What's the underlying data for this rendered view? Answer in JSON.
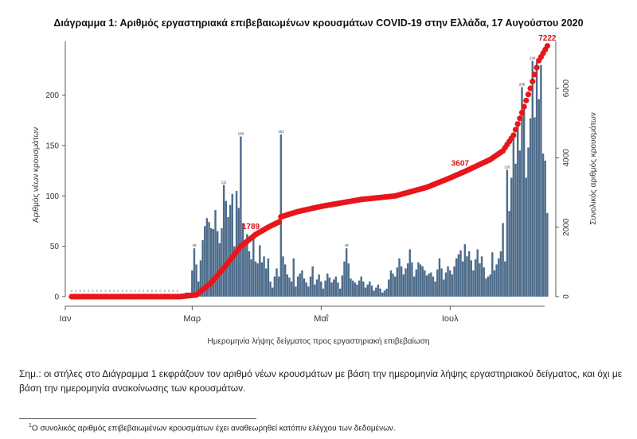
{
  "title": "Διάγραμμα 1: Αριθμός εργαστηριακά επιβεβαιωμένων κρουσμάτων COVID-19 στην Ελλάδα, 17 Αυγούστου 2020",
  "note": "Σημ.: οι στήλες στο Διάγραμμα 1 εκφράζουν τον αριθμό νέων κρουσμάτων με βάση την ημερομηνία λήψης εργαστηριακού δείγματος, και όχι με βάση την ημερομηνία ανακοίνωσης των κρουσμάτων.",
  "footnote": {
    "marker": "1",
    "text": "Ο συνολικός αριθμός επιβεβαιωμένων κρουσμάτων έχει αναθεωρηθεί κατόπιν ελέγχου των δεδομένων."
  },
  "colors": {
    "bars": "#4e6d8c",
    "cumulative": "#e8161b",
    "labels": "#d4141a"
  },
  "chart_data": {
    "type": "bar",
    "xlabel": "Ημερομηνία λήψης δείγματος προς εργαστηριακή επιβεβαίωση",
    "ylabel_left": "Αριθμός νέων κρουσμάτων",
    "ylabel_right": "Συνολικός αριθμός κρουσμάτων",
    "x_ticks": [
      "Ιαν",
      "Μαρ",
      "Μαΐ",
      "Ιουλ"
    ],
    "y_left_ticks": [
      0,
      50,
      100,
      150,
      200
    ],
    "y_right_ticks": [
      0,
      2000,
      4000,
      6000
    ],
    "ylim_left": [
      0,
      255
    ],
    "ylim_right": [
      0,
      7400
    ],
    "bars_start_date": "2020-01-04",
    "bars_end_date": "2020-08-16",
    "bar_keyframes": [
      [
        "2020-01-04",
        0
      ],
      [
        "2020-02-24",
        0
      ],
      [
        "2020-02-25",
        2
      ],
      [
        "2020-02-27",
        4
      ],
      [
        "2020-02-29",
        3
      ],
      [
        "2020-03-02",
        48
      ],
      [
        "2020-03-04",
        15
      ],
      [
        "2020-03-06",
        56
      ],
      [
        "2020-03-07",
        70
      ],
      [
        "2020-03-08",
        78
      ],
      [
        "2020-03-09",
        74
      ],
      [
        "2020-03-10",
        68
      ],
      [
        "2020-03-11",
        67
      ],
      [
        "2020-03-12",
        86
      ],
      [
        "2020-03-13",
        65
      ],
      [
        "2020-03-14",
        53
      ],
      [
        "2020-03-15",
        68
      ],
      [
        "2020-03-16",
        111
      ],
      [
        "2020-03-17",
        95
      ],
      [
        "2020-03-18",
        79
      ],
      [
        "2020-03-19",
        91
      ],
      [
        "2020-03-20",
        102
      ],
      [
        "2020-03-21",
        50
      ],
      [
        "2020-03-22",
        105
      ],
      [
        "2020-03-23",
        88
      ],
      [
        "2020-03-24",
        159
      ],
      [
        "2020-03-25",
        73
      ],
      [
        "2020-03-26",
        51
      ],
      [
        "2020-03-27",
        62
      ],
      [
        "2020-03-28",
        45
      ],
      [
        "2020-03-29",
        37
      ],
      [
        "2020-03-30",
        62
      ],
      [
        "2020-03-31",
        35
      ],
      [
        "2020-04-01",
        33
      ],
      [
        "2020-04-02",
        51
      ],
      [
        "2020-04-03",
        34
      ],
      [
        "2020-04-04",
        40
      ],
      [
        "2020-04-05",
        28
      ],
      [
        "2020-04-06",
        38
      ],
      [
        "2020-04-07",
        15
      ],
      [
        "2020-04-08",
        9
      ],
      [
        "2020-04-09",
        20
      ],
      [
        "2020-04-10",
        28
      ],
      [
        "2020-04-11",
        20
      ],
      [
        "2020-04-12",
        161
      ],
      [
        "2020-04-13",
        40
      ],
      [
        "2020-04-14",
        32
      ],
      [
        "2020-04-15",
        22
      ],
      [
        "2020-04-17",
        15
      ],
      [
        "2020-04-18",
        38
      ],
      [
        "2020-04-19",
        10
      ],
      [
        "2020-04-20",
        20
      ],
      [
        "2020-04-22",
        26
      ],
      [
        "2020-04-23",
        18
      ],
      [
        "2020-04-25",
        10
      ],
      [
        "2020-04-27",
        30
      ],
      [
        "2020-04-28",
        12
      ],
      [
        "2020-04-30",
        22
      ],
      [
        "2020-05-02",
        8
      ],
      [
        "2020-05-04",
        23
      ],
      [
        "2020-05-06",
        14
      ],
      [
        "2020-05-08",
        20
      ],
      [
        "2020-05-10",
        8
      ],
      [
        "2020-05-13",
        48
      ],
      [
        "2020-05-15",
        18
      ],
      [
        "2020-05-18",
        12
      ],
      [
        "2020-05-20",
        20
      ],
      [
        "2020-05-22",
        9
      ],
      [
        "2020-05-24",
        15
      ],
      [
        "2020-05-26",
        6
      ],
      [
        "2020-05-28",
        12
      ],
      [
        "2020-05-30",
        4
      ],
      [
        "2020-06-01",
        8
      ],
      [
        "2020-06-03",
        26
      ],
      [
        "2020-06-05",
        20
      ],
      [
        "2020-06-07",
        38
      ],
      [
        "2020-06-09",
        22
      ],
      [
        "2020-06-11",
        33
      ],
      [
        "2020-06-12",
        47
      ],
      [
        "2020-06-14",
        20
      ],
      [
        "2020-06-16",
        34
      ],
      [
        "2020-06-18",
        30
      ],
      [
        "2020-06-20",
        21
      ],
      [
        "2020-06-22",
        24
      ],
      [
        "2020-06-24",
        15
      ],
      [
        "2020-06-26",
        38
      ],
      [
        "2020-06-28",
        17
      ],
      [
        "2020-06-30",
        30
      ],
      [
        "2020-07-02",
        22
      ],
      [
        "2020-07-04",
        38
      ],
      [
        "2020-07-06",
        46
      ],
      [
        "2020-07-07",
        35
      ],
      [
        "2020-07-08",
        52
      ],
      [
        "2020-07-09",
        40
      ],
      [
        "2020-07-10",
        45
      ],
      [
        "2020-07-12",
        26
      ],
      [
        "2020-07-14",
        47
      ],
      [
        "2020-07-15",
        33
      ],
      [
        "2020-07-16",
        40
      ],
      [
        "2020-07-18",
        18
      ],
      [
        "2020-07-20",
        22
      ],
      [
        "2020-07-21",
        44
      ],
      [
        "2020-07-22",
        26
      ],
      [
        "2020-07-24",
        38
      ],
      [
        "2020-07-25",
        45
      ],
      [
        "2020-07-26",
        73
      ],
      [
        "2020-07-27",
        35
      ],
      [
        "2020-07-28",
        126
      ],
      [
        "2020-07-29",
        85
      ],
      [
        "2020-07-30",
        118
      ],
      [
        "2020-07-31",
        157
      ],
      [
        "2020-08-01",
        132
      ],
      [
        "2020-08-02",
        172
      ],
      [
        "2020-08-03",
        145
      ],
      [
        "2020-08-04",
        208
      ],
      [
        "2020-08-05",
        190
      ],
      [
        "2020-08-06",
        118
      ],
      [
        "2020-08-07",
        148
      ],
      [
        "2020-08-08",
        177
      ],
      [
        "2020-08-09",
        234
      ],
      [
        "2020-08-10",
        178
      ],
      [
        "2020-08-11",
        233
      ],
      [
        "2020-08-12",
        196
      ],
      [
        "2020-08-13",
        230
      ],
      [
        "2020-08-14",
        142
      ],
      [
        "2020-08-15",
        135
      ],
      [
        "2020-08-16",
        83
      ]
    ],
    "cumulative_keyframes": [
      [
        "2020-01-04",
        0
      ],
      [
        "2020-02-24",
        0
      ],
      [
        "2020-03-03",
        50
      ],
      [
        "2020-03-10",
        400
      ],
      [
        "2020-03-17",
        900
      ],
      [
        "2020-03-24",
        1450
      ],
      [
        "2020-03-31",
        1789
      ],
      [
        "2020-04-06",
        2000
      ],
      [
        "2020-04-11",
        2150
      ],
      [
        "2020-04-12",
        2300
      ],
      [
        "2020-04-20",
        2450
      ],
      [
        "2020-05-01",
        2600
      ],
      [
        "2020-05-20",
        2800
      ],
      [
        "2020-06-05",
        2900
      ],
      [
        "2020-06-20",
        3150
      ],
      [
        "2020-07-01",
        3420
      ],
      [
        "2020-07-08",
        3607
      ],
      [
        "2020-07-20",
        3950
      ],
      [
        "2020-07-26",
        4200
      ],
      [
        "2020-07-31",
        4650
      ],
      [
        "2020-08-04",
        5300
      ],
      [
        "2020-08-08",
        6000
      ],
      [
        "2020-08-12",
        6800
      ],
      [
        "2020-08-16",
        7222
      ]
    ],
    "cumulative_labels": [
      {
        "date": "2020-03-31",
        "value": 1789,
        "text": "1789"
      },
      {
        "date": "2020-07-08",
        "value": 3607,
        "text": "3607"
      },
      {
        "date": "2020-08-16",
        "value": 7222,
        "text": "7222"
      }
    ],
    "bar_value_labels": [
      {
        "date": "2020-03-24",
        "value": 159,
        "text": "159"
      },
      {
        "date": "2020-04-12",
        "value": 161,
        "text": "161"
      },
      {
        "date": "2020-03-16",
        "value": 111,
        "text": "111"
      },
      {
        "date": "2020-08-04",
        "value": 208,
        "text": "208"
      },
      {
        "date": "2020-08-09",
        "value": 234,
        "text": "234"
      },
      {
        "date": "2020-07-28",
        "value": 126,
        "text": "126"
      },
      {
        "date": "2020-03-02",
        "value": 48,
        "text": "48"
      },
      {
        "date": "2020-05-13",
        "value": 48,
        "text": "48"
      }
    ]
  }
}
